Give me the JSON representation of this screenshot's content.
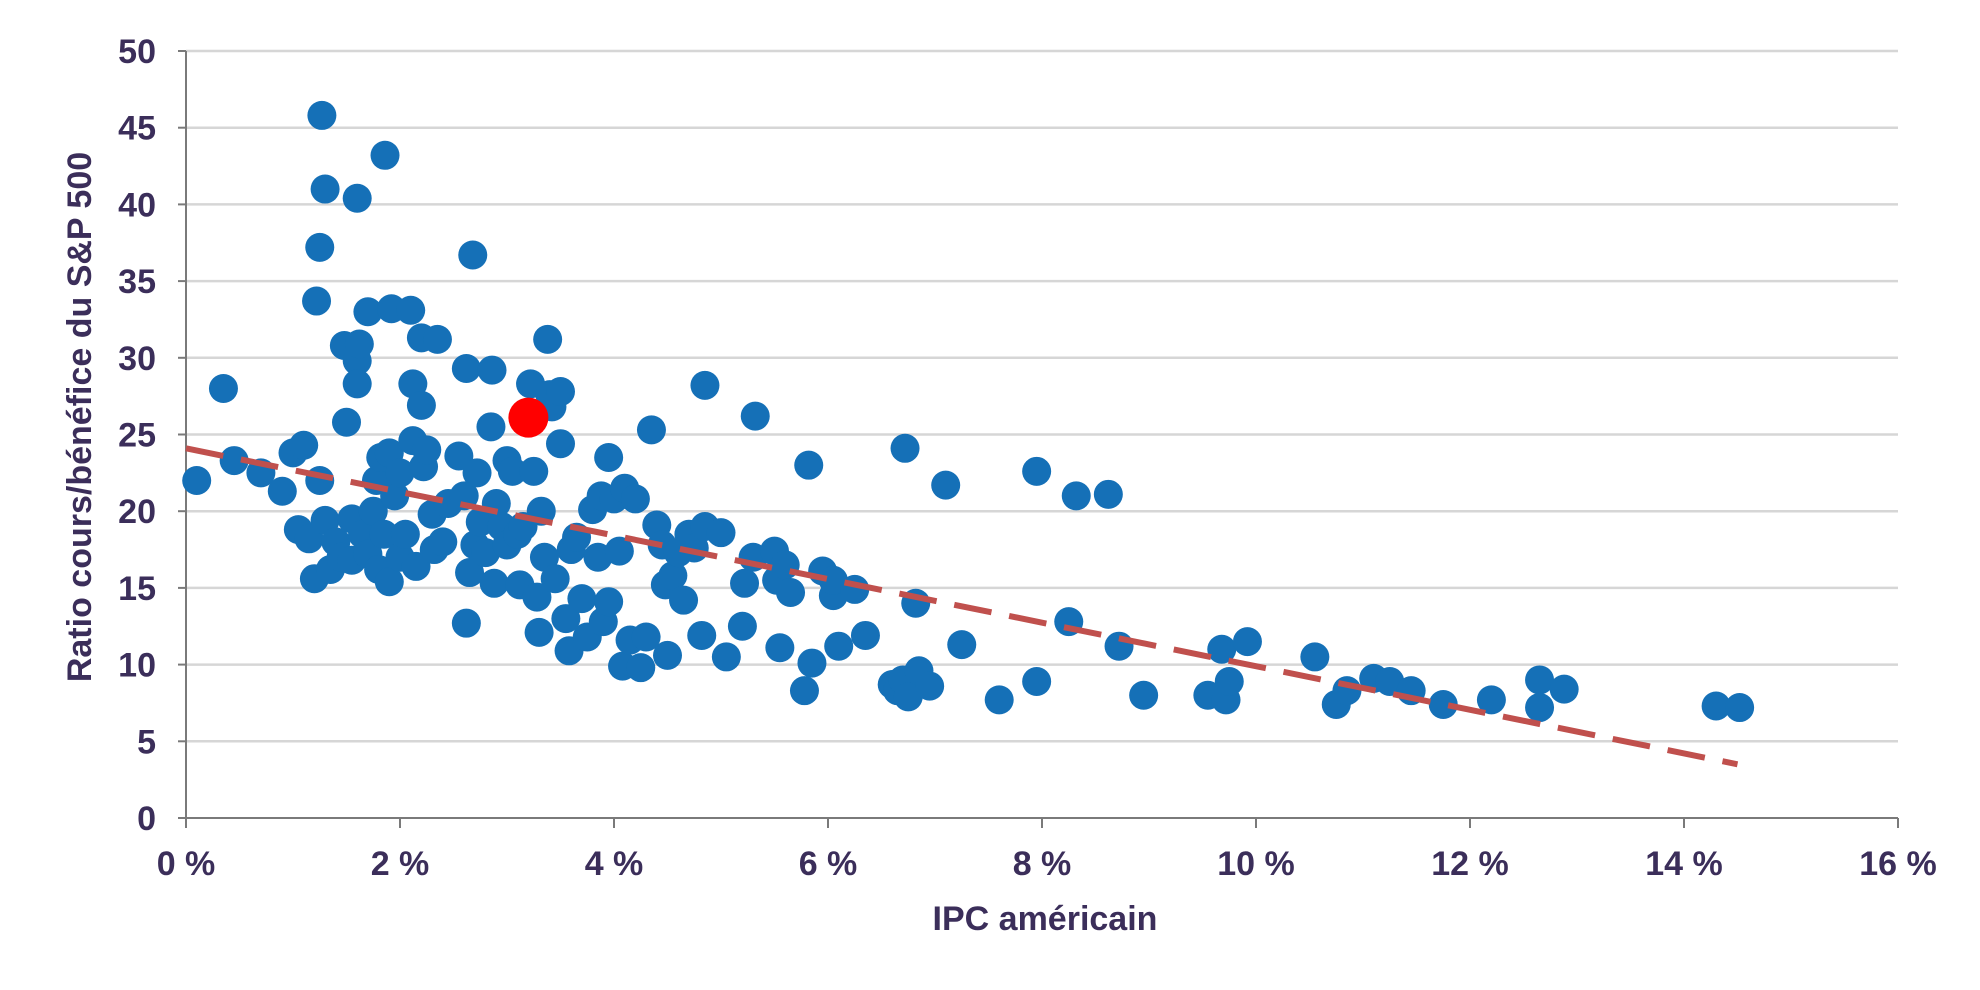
{
  "chart_data": {
    "type": "scatter",
    "title": "",
    "xlabel": "IPC américain",
    "ylabel": "Ratio cours/bénéfice du S&P 500",
    "xlim": [
      0,
      16
    ],
    "ylim": [
      0,
      50
    ],
    "x_ticks": [
      0,
      2,
      4,
      6,
      8,
      10,
      12,
      14,
      16
    ],
    "x_tick_labels": [
      "0 %",
      "2 %",
      "4 %",
      "6 %",
      "8 %",
      "10 %",
      "12 %",
      "14 %",
      "16 %"
    ],
    "y_ticks": [
      0,
      5,
      10,
      15,
      20,
      25,
      30,
      35,
      40,
      45,
      50
    ],
    "y_tick_labels": [
      "0",
      "5",
      "10",
      "15",
      "20",
      "25",
      "30",
      "35",
      "40",
      "45",
      "50"
    ],
    "grid": "horizontal",
    "legend": "none",
    "colors": {
      "points": "#1570b7",
      "highlight": "#ff0000",
      "trend": "#c0504d",
      "text": "#3b2e5a"
    },
    "trendline": {
      "style": "dashed",
      "x": [
        0,
        14.5
      ],
      "y": [
        24.1,
        3.5
      ]
    },
    "highlight_point": {
      "x": 3.2,
      "y": 26.1
    },
    "series": [
      {
        "points": [
          [
            0.1,
            22.0
          ],
          [
            0.35,
            28.0
          ],
          [
            0.45,
            23.3
          ],
          [
            0.7,
            22.5
          ],
          [
            0.9,
            21.3
          ],
          [
            1.0,
            23.8
          ],
          [
            1.05,
            18.8
          ],
          [
            1.1,
            24.3
          ],
          [
            1.15,
            18.2
          ],
          [
            1.2,
            15.6
          ],
          [
            1.25,
            22.0
          ],
          [
            1.22,
            33.7
          ],
          [
            1.25,
            37.2
          ],
          [
            1.27,
            45.8
          ],
          [
            1.3,
            41.0
          ],
          [
            1.3,
            19.4
          ],
          [
            1.35,
            16.2
          ],
          [
            1.4,
            18.0
          ],
          [
            1.45,
            17.0
          ],
          [
            1.5,
            25.8
          ],
          [
            1.48,
            30.8
          ],
          [
            1.55,
            19.5
          ],
          [
            1.55,
            16.8
          ],
          [
            1.6,
            29.8
          ],
          [
            1.62,
            30.9
          ],
          [
            1.6,
            28.3
          ],
          [
            1.6,
            40.4
          ],
          [
            1.65,
            18.5
          ],
          [
            1.7,
            33.0
          ],
          [
            1.7,
            17.2
          ],
          [
            1.75,
            20.0
          ],
          [
            1.78,
            22.0
          ],
          [
            1.8,
            16.2
          ],
          [
            1.82,
            23.5
          ],
          [
            1.85,
            18.5
          ],
          [
            1.86,
            43.2
          ],
          [
            1.9,
            23.8
          ],
          [
            1.9,
            15.4
          ],
          [
            1.92,
            33.2
          ],
          [
            1.95,
            21.0
          ],
          [
            2.0,
            17.0
          ],
          [
            2.0,
            22.5
          ],
          [
            2.05,
            18.5
          ],
          [
            2.1,
            33.1
          ],
          [
            2.12,
            28.3
          ],
          [
            2.12,
            24.6
          ],
          [
            2.15,
            16.4
          ],
          [
            2.2,
            31.3
          ],
          [
            2.2,
            26.9
          ],
          [
            2.22,
            22.9
          ],
          [
            2.25,
            24.0
          ],
          [
            2.3,
            19.8
          ],
          [
            2.32,
            17.5
          ],
          [
            2.35,
            31.2
          ],
          [
            2.4,
            18.0
          ],
          [
            2.45,
            20.5
          ],
          [
            2.55,
            23.6
          ],
          [
            2.6,
            21.0
          ],
          [
            2.62,
            29.3
          ],
          [
            2.62,
            12.7
          ],
          [
            2.65,
            16.0
          ],
          [
            2.68,
            36.7
          ],
          [
            2.7,
            17.8
          ],
          [
            2.72,
            22.5
          ],
          [
            2.75,
            19.3
          ],
          [
            2.8,
            17.3
          ],
          [
            2.85,
            25.5
          ],
          [
            2.86,
            29.2
          ],
          [
            2.88,
            15.3
          ],
          [
            2.9,
            20.5
          ],
          [
            2.95,
            19.0
          ],
          [
            3.0,
            17.8
          ],
          [
            3.0,
            23.3
          ],
          [
            3.05,
            22.6
          ],
          [
            3.1,
            18.5
          ],
          [
            3.12,
            15.2
          ],
          [
            3.15,
            19.0
          ],
          [
            3.22,
            28.3
          ],
          [
            3.25,
            22.6
          ],
          [
            3.28,
            14.4
          ],
          [
            3.3,
            12.1
          ],
          [
            3.32,
            20.0
          ],
          [
            3.35,
            17.0
          ],
          [
            3.38,
            31.2
          ],
          [
            3.4,
            27.6
          ],
          [
            3.42,
            26.8
          ],
          [
            3.45,
            15.6
          ],
          [
            3.5,
            24.4
          ],
          [
            3.5,
            27.8
          ],
          [
            3.55,
            13.0
          ],
          [
            3.58,
            10.9
          ],
          [
            3.6,
            17.5
          ],
          [
            3.65,
            18.3
          ],
          [
            3.7,
            14.3
          ],
          [
            3.75,
            11.8
          ],
          [
            3.8,
            20.1
          ],
          [
            3.85,
            17.0
          ],
          [
            3.88,
            21.0
          ],
          [
            3.9,
            12.8
          ],
          [
            3.95,
            23.5
          ],
          [
            3.95,
            14.1
          ],
          [
            4.0,
            20.8
          ],
          [
            4.05,
            17.4
          ],
          [
            4.08,
            9.9
          ],
          [
            4.1,
            21.5
          ],
          [
            4.15,
            11.6
          ],
          [
            4.2,
            20.8
          ],
          [
            4.25,
            9.8
          ],
          [
            4.3,
            11.8
          ],
          [
            4.35,
            25.3
          ],
          [
            4.4,
            19.1
          ],
          [
            4.45,
            17.8
          ],
          [
            4.48,
            15.2
          ],
          [
            4.5,
            10.6
          ],
          [
            4.55,
            15.8
          ],
          [
            4.6,
            17.3
          ],
          [
            4.65,
            14.2
          ],
          [
            4.7,
            18.5
          ],
          [
            4.75,
            17.6
          ],
          [
            4.82,
            11.9
          ],
          [
            4.85,
            28.2
          ],
          [
            4.85,
            19.0
          ],
          [
            5.0,
            18.6
          ],
          [
            5.05,
            10.5
          ],
          [
            5.2,
            12.5
          ],
          [
            5.22,
            15.3
          ],
          [
            5.3,
            17.0
          ],
          [
            5.32,
            26.2
          ],
          [
            5.5,
            17.4
          ],
          [
            5.52,
            15.5
          ],
          [
            5.55,
            11.1
          ],
          [
            5.6,
            16.5
          ],
          [
            5.65,
            14.7
          ],
          [
            5.78,
            8.3
          ],
          [
            5.82,
            23.0
          ],
          [
            5.85,
            10.1
          ],
          [
            5.95,
            16.1
          ],
          [
            6.05,
            14.5
          ],
          [
            6.05,
            15.5
          ],
          [
            6.1,
            11.2
          ],
          [
            6.25,
            14.9
          ],
          [
            6.35,
            11.9
          ],
          [
            6.6,
            8.7
          ],
          [
            6.65,
            8.3
          ],
          [
            6.7,
            9.0
          ],
          [
            6.72,
            24.1
          ],
          [
            6.75,
            7.9
          ],
          [
            6.82,
            14.0
          ],
          [
            6.85,
            9.6
          ],
          [
            6.95,
            8.6
          ],
          [
            7.1,
            21.7
          ],
          [
            7.25,
            11.3
          ],
          [
            7.6,
            7.7
          ],
          [
            7.95,
            22.6
          ],
          [
            7.95,
            8.9
          ],
          [
            8.25,
            12.8
          ],
          [
            8.32,
            21.0
          ],
          [
            8.62,
            21.1
          ],
          [
            8.72,
            11.2
          ],
          [
            8.95,
            8.0
          ],
          [
            9.55,
            8.0
          ],
          [
            9.68,
            11.0
          ],
          [
            9.72,
            7.7
          ],
          [
            9.75,
            8.9
          ],
          [
            9.92,
            11.5
          ],
          [
            10.55,
            10.5
          ],
          [
            10.75,
            7.4
          ],
          [
            10.85,
            8.3
          ],
          [
            11.1,
            9.1
          ],
          [
            11.25,
            8.9
          ],
          [
            11.45,
            8.3
          ],
          [
            11.75,
            7.4
          ],
          [
            12.2,
            7.7
          ],
          [
            12.65,
            9.0
          ],
          [
            12.65,
            7.2
          ],
          [
            12.88,
            8.4
          ],
          [
            14.3,
            7.3
          ],
          [
            14.52,
            7.2
          ]
        ]
      }
    ]
  }
}
